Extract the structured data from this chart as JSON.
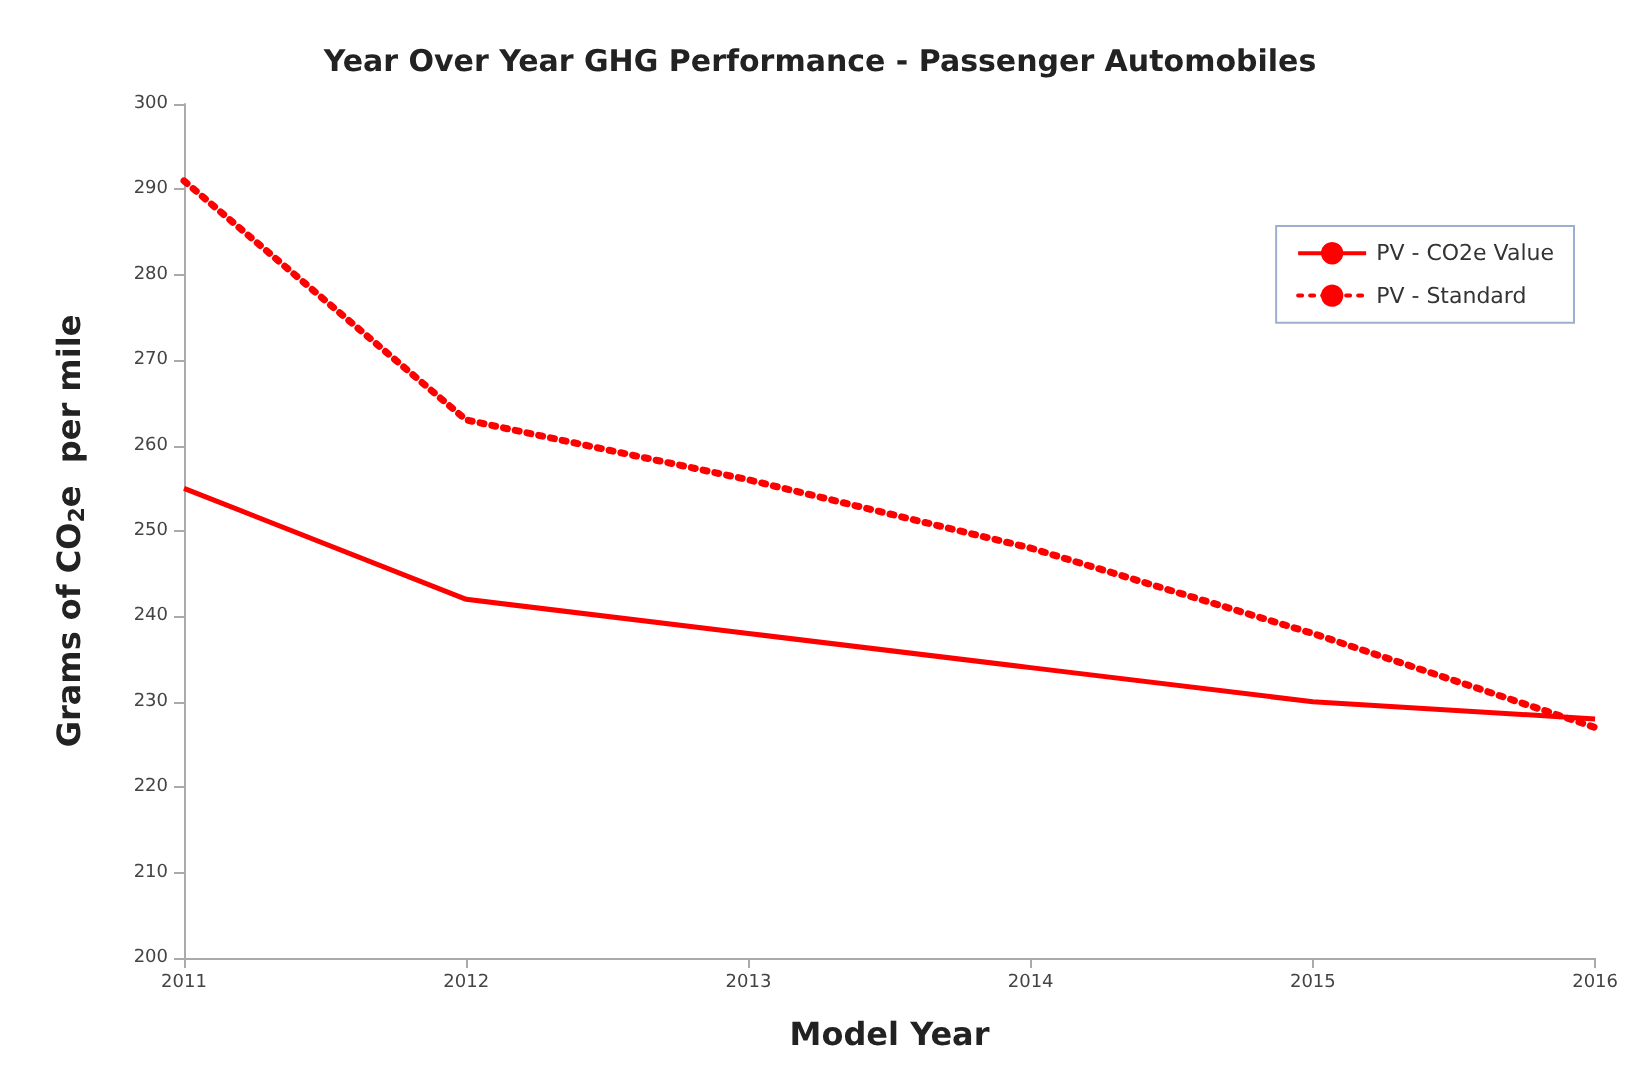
{
  "chart_data": {
    "type": "line",
    "title": "Year Over Year GHG Performance - Passenger Automobiles",
    "xlabel": "Model Year",
    "ylabel": "Grams of CO$_{2}$e  per mile",
    "categories": [
      "2011",
      "2012",
      "2013",
      "2014",
      "2015",
      "2016"
    ],
    "series": [
      {
        "name": "PV - CO2e Value",
        "color": "#ff0000",
        "line_style": "solid",
        "values": [
          255,
          242,
          238,
          234,
          230,
          228
        ]
      },
      {
        "name": "PV - Standard",
        "color": "#ff0000",
        "line_style": "dotted",
        "values": [
          291,
          263,
          256,
          248,
          238,
          227
        ]
      }
    ],
    "ylim": [
      200,
      300
    ],
    "yticks": [
      200,
      210,
      220,
      230,
      240,
      250,
      260,
      270,
      280,
      290,
      300
    ],
    "grid": false,
    "legend": "top right",
    "marker": "none"
  }
}
